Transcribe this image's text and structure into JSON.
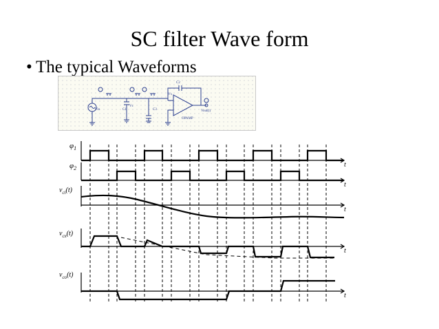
{
  "slide": {
    "title": "SC filter Wave form",
    "bullet_mark": "•",
    "bullet_text": "The typical Waveforms"
  },
  "schematic": {
    "labels": {
      "c2": "C2",
      "c1": "C1",
      "c3": "C3",
      "vc": "Vc",
      "vin": "Vin",
      "vx": "Vx",
      "vout": "Vout(t)",
      "opamp": "OPAMP"
    }
  },
  "waveforms": {
    "t_label": "t",
    "traces": [
      {
        "id": "phi1",
        "label": "φ1"
      },
      {
        "id": "phi2",
        "label": "φ2"
      },
      {
        "id": "vci",
        "label": "vci(t)"
      },
      {
        "id": "vcx",
        "label": "vcx(t)"
      },
      {
        "id": "vco",
        "label": "vco(t)"
      }
    ]
  }
}
